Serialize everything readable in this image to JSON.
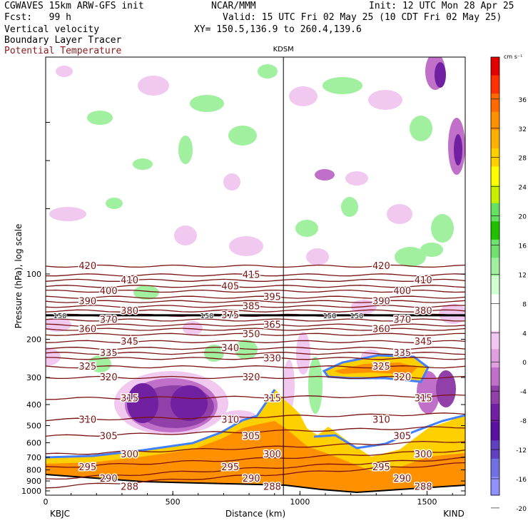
{
  "header": {
    "model": "CGWAVES 15km ARW-GFS init",
    "fcst": "Fcst:   99 h",
    "org": "NCAR/MMM",
    "init": "Init: 12 UTC Mon 28 Apr 25",
    "valid": "Valid: 15 UTC Fri 02 May 25 (10 CDT Fri 02 May 25)",
    "xy": "XY= 150.5,136.9 to 260.4,139.6",
    "field1": "Vertical velocity",
    "field2": "Boundary Layer Tracer",
    "field3": "Potential Temperature",
    "field3_color": "#8b1a1a"
  },
  "chart_data": {
    "type": "heatmap",
    "xlabel": "Distance (km)",
    "ylabel": "Pressure (hPa), log scale",
    "xlim": [
      0,
      1650
    ],
    "x_ticks": [
      "0",
      "500",
      "1000",
      "1500"
    ],
    "x_tick_values": [
      0,
      500,
      1000,
      1500
    ],
    "y_ticks": [
      "100",
      "200",
      "300",
      "400",
      "500",
      "600",
      "700",
      "800",
      "900",
      "1000"
    ],
    "y_tick_values": [
      100,
      200,
      300,
      400,
      500,
      600,
      700,
      800,
      900,
      1000
    ],
    "log_scale": true,
    "left_endpoint": "KBJC",
    "right_endpoint": "KIND",
    "station_marker": {
      "label": "KDSM",
      "x": 935
    },
    "tropopause_level": 155,
    "colorbar": {
      "unit": "cm s⁻¹",
      "labels": [
        "36",
        "32",
        "28",
        "24",
        "20",
        "16",
        "12",
        "8",
        "4",
        "0",
        "-4",
        "-8",
        "-12",
        "-16",
        "-20"
      ],
      "colors": [
        "#e00000",
        "#ff3000",
        "#ff6a00",
        "#ff9000",
        "#ffb000",
        "#ffd000",
        "#ffff00",
        "#c8f000",
        "#66e060",
        "#20c000",
        "#70e070",
        "#a0f0a0",
        "#d0ffd0",
        "#ffffff",
        "#ffffff",
        "#f0c8f0",
        "#e0a0e0",
        "#c070c8",
        "#9040a8",
        "#7020a0",
        "#5a10a0",
        "#6040c0",
        "#7070e0",
        "#9090ff"
      ]
    },
    "theta_contours": [
      {
        "label": "420",
        "pressure": 92
      },
      {
        "label": "415",
        "pressure": 101
      },
      {
        "label": "410",
        "pressure": 107
      },
      {
        "label": "405",
        "pressure": 114
      },
      {
        "label": "400",
        "pressure": 120
      },
      {
        "label": "395",
        "pressure": 128
      },
      {
        "label": "390",
        "pressure": 134
      },
      {
        "label": "385",
        "pressure": 141
      },
      {
        "label": "380",
        "pressure": 148
      },
      {
        "label": "375",
        "pressure": 155
      },
      {
        "label": "370",
        "pressure": 163
      },
      {
        "label": "365",
        "pressure": 172
      },
      {
        "label": "360",
        "pressure": 180
      },
      {
        "label": "350",
        "pressure": 190
      },
      {
        "label": "345",
        "pressure": 205
      },
      {
        "label": "340",
        "pressure": 220
      },
      {
        "label": "335",
        "pressure": 232
      },
      {
        "label": "330",
        "pressure": 245
      },
      {
        "label": "325",
        "pressure": 268
      },
      {
        "label": "320",
        "pressure": 300
      },
      {
        "label": "315",
        "pressure": 375
      },
      {
        "label": "310",
        "pressure": 470
      },
      {
        "label": "305",
        "pressure": 560
      },
      {
        "label": "300",
        "pressure": 680
      },
      {
        "label": "295",
        "pressure": 780
      },
      {
        "label": "290",
        "pressure": 880
      },
      {
        "label": "288",
        "pressure": 960
      }
    ],
    "extra_labels": [
      "150",
      "150",
      "150",
      "150"
    ]
  }
}
